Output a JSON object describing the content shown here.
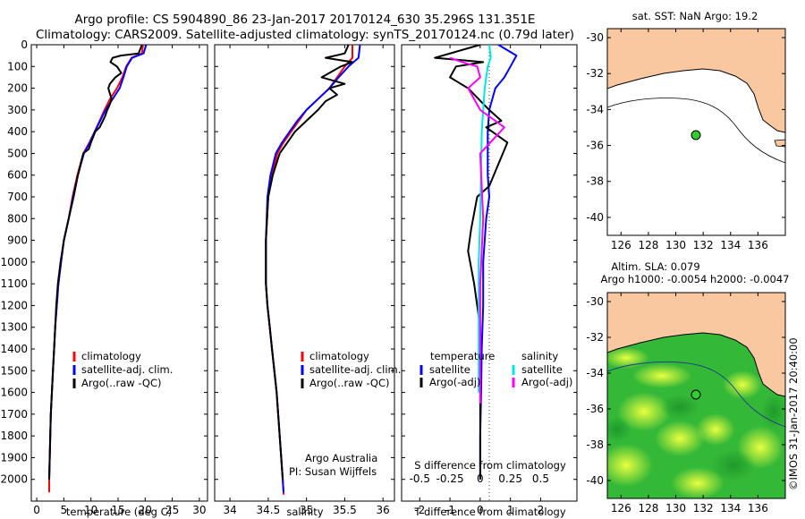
{
  "header": {
    "line1": "Argo profile: CS 5904890_86 23-Jan-2017 20170124_630 35.296S 131.351E",
    "line2": "Climatology: CARS2009. Satellite-adjusted climatology: synTS_20170124.nc (0.79d later)"
  },
  "colors": {
    "climatology": "#ff0000",
    "satellite": "#0000ff",
    "argo": "#000000",
    "sal_satellite": "#00e5e5",
    "sal_argo": "#ff00ff",
    "land": "#f9c8a0",
    "sst_ocean": "#ffffff",
    "sla_bg": "#33bb33"
  },
  "chart_data": [
    {
      "type": "line",
      "id": "temperature",
      "xlabel": "temperature (deg C)",
      "ylabel": "",
      "xlim": [
        -1,
        31.5
      ],
      "ylim": [
        2100,
        0
      ],
      "xticks": [
        0,
        5,
        10,
        15,
        20,
        25,
        30
      ],
      "yticks": [
        0,
        100,
        200,
        300,
        400,
        500,
        600,
        700,
        800,
        900,
        1000,
        1100,
        1200,
        1300,
        1400,
        1500,
        1600,
        1700,
        1800,
        1900,
        2000
      ],
      "legend": [
        "climatology",
        "satellite-adj. clim.",
        "Argo(..raw -QC)"
      ],
      "series": [
        {
          "name": "climatology",
          "color": "#ff0000",
          "x": [
            19.6,
            19.4,
            17.5,
            16.5,
            15.8,
            14.8,
            13.5,
            12.5,
            11.6,
            10.7,
            9.7,
            8.6,
            7.5,
            6.6,
            5.9,
            5.0,
            4.5,
            4.0,
            3.7,
            3.4,
            3.2,
            3.0,
            2.8,
            2.6,
            2.5,
            2.4,
            2.3,
            2.3
          ],
          "y": [
            0,
            40,
            60,
            100,
            150,
            200,
            250,
            300,
            350,
            400,
            450,
            500,
            600,
            700,
            800,
            900,
            1000,
            1100,
            1200,
            1300,
            1400,
            1500,
            1600,
            1700,
            1800,
            1900,
            2000,
            2060
          ]
        },
        {
          "name": "satellite-adj. clim.",
          "color": "#0000ff",
          "x": [
            20.2,
            19.7,
            17.6,
            16.6,
            16.0,
            15.3,
            14.0,
            12.7,
            11.7,
            10.7,
            9.8,
            8.7,
            7.6,
            6.7,
            5.9,
            5.0,
            4.5,
            4.0,
            3.7,
            3.4,
            3.2,
            3.0,
            2.8,
            2.6,
            2.5,
            2.4,
            2.3
          ],
          "y": [
            0,
            40,
            60,
            100,
            150,
            200,
            250,
            300,
            350,
            400,
            450,
            500,
            600,
            700,
            800,
            900,
            1000,
            1100,
            1200,
            1300,
            1400,
            1500,
            1600,
            1700,
            1800,
            1900,
            2000
          ]
        },
        {
          "name": "Argo(..raw -QC)",
          "color": "#000000",
          "x": [
            19.4,
            18.8,
            15.5,
            14.0,
            13.6,
            14.8,
            15.6,
            14.5,
            13.5,
            13.2,
            13.8,
            13.4,
            13.0,
            12.6,
            12.2,
            11.6,
            10.8,
            10.0,
            9.6,
            8.6,
            7.6,
            6.8,
            5.9,
            5.0,
            4.4,
            3.9,
            3.6,
            3.4,
            3.2,
            3.0,
            2.8,
            2.6,
            2.5,
            2.4,
            2.3
          ],
          "y": [
            0,
            40,
            50,
            60,
            80,
            100,
            130,
            150,
            180,
            200,
            250,
            280,
            300,
            330,
            350,
            380,
            400,
            450,
            480,
            500,
            600,
            700,
            800,
            900,
            1000,
            1100,
            1200,
            1300,
            1400,
            1500,
            1600,
            1700,
            1800,
            1900,
            2000
          ]
        }
      ]
    },
    {
      "type": "line",
      "id": "salinity",
      "xlabel": "salinity",
      "ylabel": "",
      "xlim": [
        33.8,
        36.15
      ],
      "ylim": [
        2100,
        0
      ],
      "xticks": [
        34,
        34.5,
        35,
        35.5,
        36
      ],
      "legend": [
        "climatology",
        "satellite-adj. clim.",
        "Argo(..raw -QC)"
      ],
      "annotation": [
        "Argo Australia",
        "PI: Susan Wijffels"
      ],
      "series": [
        {
          "name": "climatology",
          "color": "#ff0000",
          "x": [
            35.6,
            35.6,
            35.5,
            35.4,
            35.3,
            35.15,
            35.0,
            34.9,
            34.8,
            34.7,
            34.62,
            34.55,
            34.5,
            34.47,
            34.47,
            34.49,
            34.52,
            34.55,
            34.58,
            34.61,
            34.63,
            34.65,
            34.67,
            34.69,
            34.7,
            34.7
          ],
          "y": [
            0,
            60,
            100,
            150,
            200,
            250,
            300,
            350,
            400,
            450,
            500,
            600,
            700,
            900,
            1100,
            1200,
            1300,
            1400,
            1500,
            1600,
            1700,
            1800,
            1900,
            2000,
            2060,
            2070
          ]
        },
        {
          "name": "satellite-adj. clim.",
          "color": "#0000ff",
          "x": [
            35.7,
            35.68,
            35.55,
            35.42,
            35.3,
            35.15,
            35.0,
            34.88,
            34.78,
            34.68,
            34.6,
            34.53,
            34.49,
            34.47,
            34.47,
            34.49,
            34.52,
            34.55,
            34.58,
            34.61,
            34.63,
            34.65,
            34.67,
            34.69,
            34.7
          ],
          "y": [
            0,
            60,
            100,
            150,
            200,
            250,
            300,
            350,
            400,
            450,
            500,
            600,
            700,
            900,
            1100,
            1200,
            1300,
            1400,
            1500,
            1600,
            1700,
            1800,
            1900,
            2000,
            2060
          ]
        },
        {
          "name": "Argo(..raw -QC)",
          "color": "#000000",
          "x": [
            35.55,
            35.5,
            35.25,
            35.6,
            35.45,
            35.2,
            35.5,
            35.3,
            35.4,
            35.25,
            35.15,
            35.0,
            34.85,
            34.75,
            34.65,
            34.56,
            34.5,
            34.47,
            34.47,
            34.49,
            34.52,
            34.55,
            34.58,
            34.61,
            34.63,
            34.65,
            34.67,
            34.69
          ],
          "y": [
            0,
            40,
            60,
            80,
            100,
            150,
            180,
            200,
            230,
            260,
            300,
            350,
            400,
            450,
            500,
            600,
            700,
            900,
            1100,
            1200,
            1300,
            1400,
            1500,
            1600,
            1700,
            1800,
            1900,
            2000
          ]
        }
      ]
    },
    {
      "type": "line",
      "id": "difference",
      "xlabel": "T difference from climatology",
      "xlabel_top": "S difference from climatology",
      "xlim": [
        -2.6,
        3.2
      ],
      "ylim": [
        2100,
        0
      ],
      "xticks": [
        -2,
        -1,
        0,
        1,
        2
      ],
      "xticks_top_labels": [
        "-0.5",
        "-0.25",
        "0",
        "0.25",
        "0.5"
      ],
      "xticks_top_positions": [
        -2,
        -1,
        0,
        1,
        2
      ],
      "legend_left_title": "temperature",
      "legend_right_title": "salinity",
      "legend": [
        "satellite",
        "Argo(-adj)",
        "satellite",
        "Argo(-adj)"
      ],
      "series": [
        {
          "name": "satellite",
          "group": "temperature",
          "color": "#0000ff",
          "x": [
            0.6,
            1.2,
            1.0,
            0.8,
            0.5,
            0.3,
            0.25,
            0.25,
            0.3,
            0.2,
            0.1,
            0.1,
            0.05,
            0.03,
            0.0,
            0.0
          ],
          "y": [
            0,
            50,
            100,
            150,
            200,
            300,
            400,
            600,
            700,
            800,
            1000,
            1200,
            1400,
            1600,
            1800,
            2000
          ]
        },
        {
          "name": "Argo(-adj)",
          "group": "temperature",
          "color": "#000000",
          "x": [
            0.0,
            -1.5,
            0.1,
            -0.8,
            -1.0,
            -0.4,
            0.3,
            0.7,
            0.2,
            0.9,
            0.6,
            0.3,
            -0.1,
            -0.3,
            -0.4,
            -0.2,
            0.0,
            0.0,
            0.0,
            0.0
          ],
          "y": [
            0,
            60,
            80,
            100,
            150,
            200,
            300,
            350,
            380,
            450,
            550,
            650,
            700,
            850,
            950,
            1100,
            1300,
            1500,
            1800,
            2000
          ]
        },
        {
          "name": "satellite",
          "group": "salinity",
          "color": "#00e5e5",
          "x": [
            0.3,
            0.35,
            0.25,
            0.15,
            0.05,
            0.0,
            -0.05,
            -0.05,
            -0.05,
            -0.05
          ],
          "y": [
            0,
            60,
            100,
            200,
            400,
            800,
            1000,
            1200,
            1400,
            1600
          ]
        },
        {
          "name": "Argo(-adj)",
          "group": "salinity",
          "color": "#ff00ff",
          "x": [
            -1.0,
            -0.6,
            -0.1,
            0.0,
            -0.4,
            0.0,
            0.8,
            0.0,
            0.1,
            0.0,
            0.0
          ],
          "y": [
            60,
            80,
            100,
            150,
            200,
            300,
            380,
            500,
            800,
            1100,
            1650
          ]
        }
      ]
    },
    {
      "type": "map",
      "id": "sst_map",
      "title": "sat. SST: NaN Argo: 19.2",
      "xlim": [
        125,
        138
      ],
      "ylim": [
        -41,
        -29.5
      ],
      "xticks": [
        126,
        128,
        130,
        132,
        134,
        136
      ],
      "yticks": [
        -30,
        -32,
        -34,
        -36,
        -38,
        -40
      ],
      "point": {
        "lon": 131.351,
        "lat": -35.296
      }
    },
    {
      "type": "map",
      "id": "sla_map",
      "title": "Altim. SLA: 0.079",
      "subtitle": "Argo h1000: -0.0054 h2000: -0.0047",
      "xlim": [
        125,
        138
      ],
      "ylim": [
        -41,
        -29.5
      ],
      "xticks": [
        126,
        128,
        130,
        132,
        134,
        136
      ],
      "yticks": [
        -30,
        -32,
        -34,
        -36,
        -38,
        -40
      ],
      "point": {
        "lon": 131.351,
        "lat": -35.296
      }
    }
  ],
  "footer": {
    "credit": "©IMOS 31-Jan-2017 20:40:00"
  }
}
